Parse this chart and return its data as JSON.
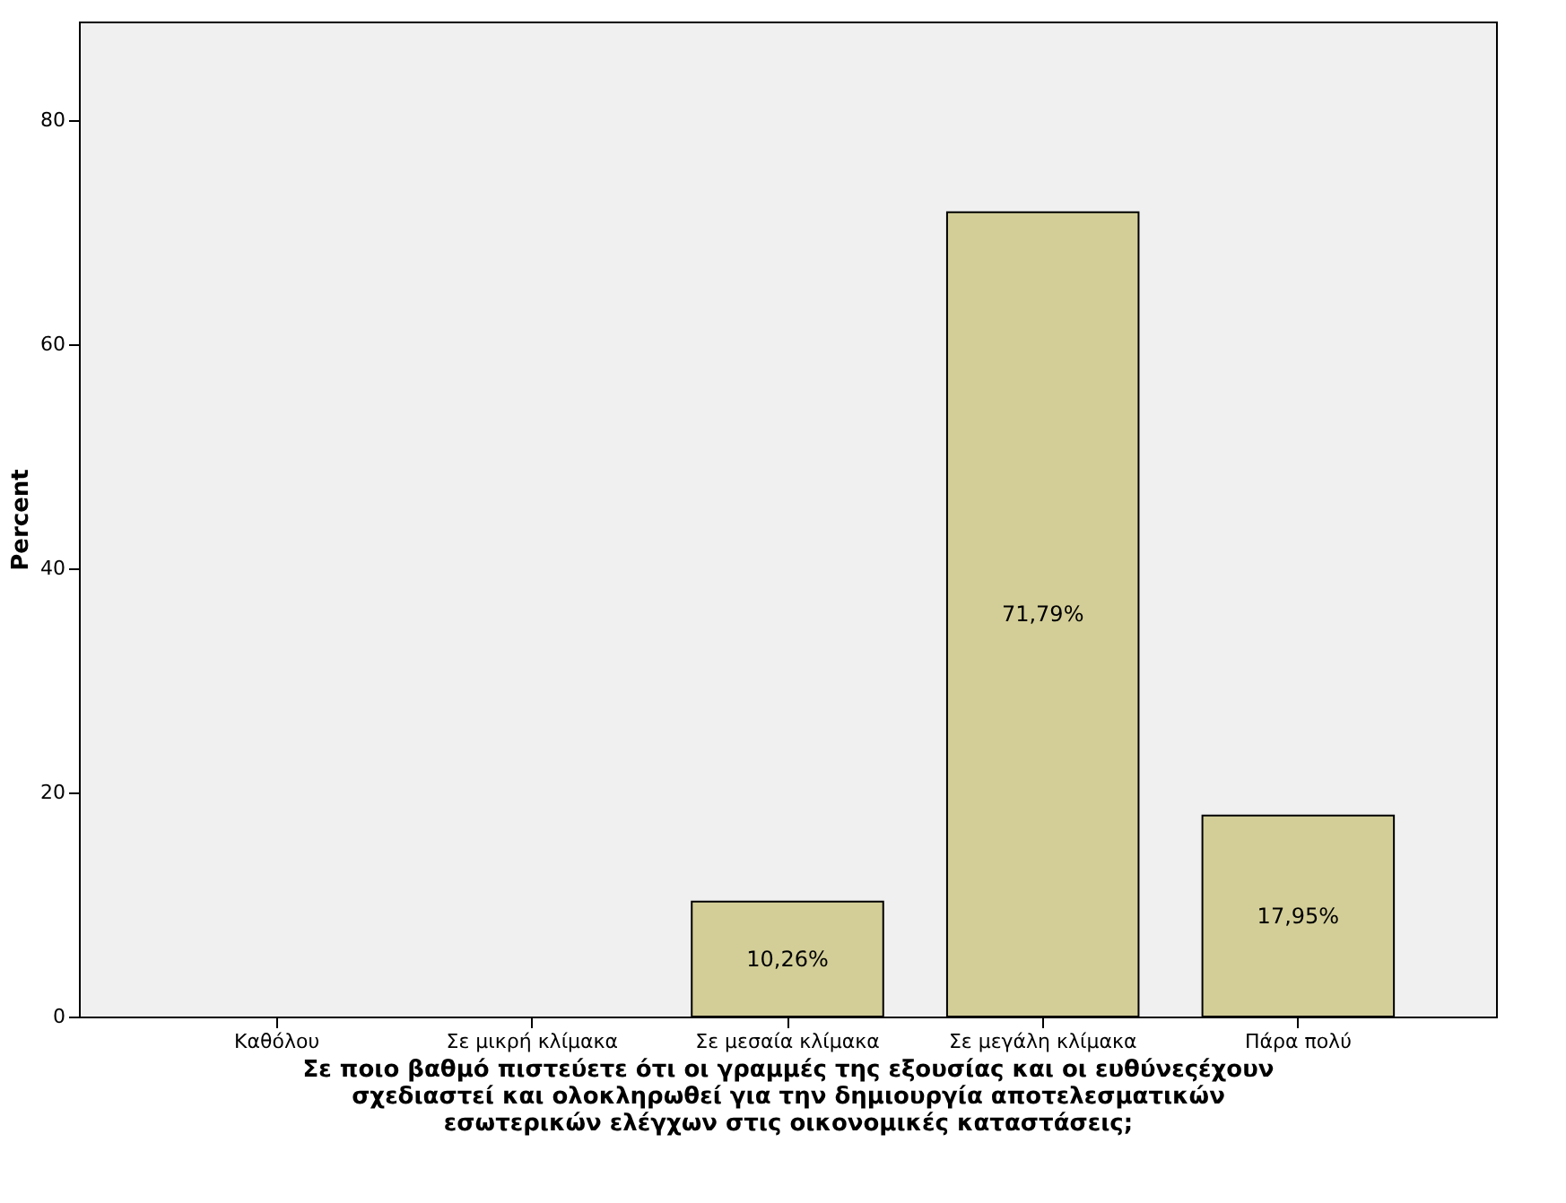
{
  "chart_data": {
    "type": "bar",
    "xlabel": "Σε ποιο βαθμό πιστεύετε ότι οι γραμμές της εξουσίας και οι ευθύνεςέχουν\nσχεδιαστεί και  ολοκληρωθεί  για  την  δημιουργία  αποτελεσματικών\nεσωτερικών  ελέγχων  στις οικονομικές καταστάσεις;",
    "ylabel": "Percent",
    "categories": [
      "Καθόλου",
      "Σε μικρή κλίμακα",
      "Σε μεσαία κλίμακα",
      "Σε μεγάλη κλίμακα",
      "Πάρα πολύ"
    ],
    "values": [
      0,
      0,
      10.26,
      71.79,
      17.95
    ],
    "value_labels": [
      null,
      null,
      "10,26%",
      "71,79%",
      "17,95%"
    ],
    "color": "#d3ce97",
    "ylim": [
      0,
      88.8
    ],
    "yticks": [
      0,
      20,
      40,
      60,
      80
    ],
    "grid": false
  }
}
